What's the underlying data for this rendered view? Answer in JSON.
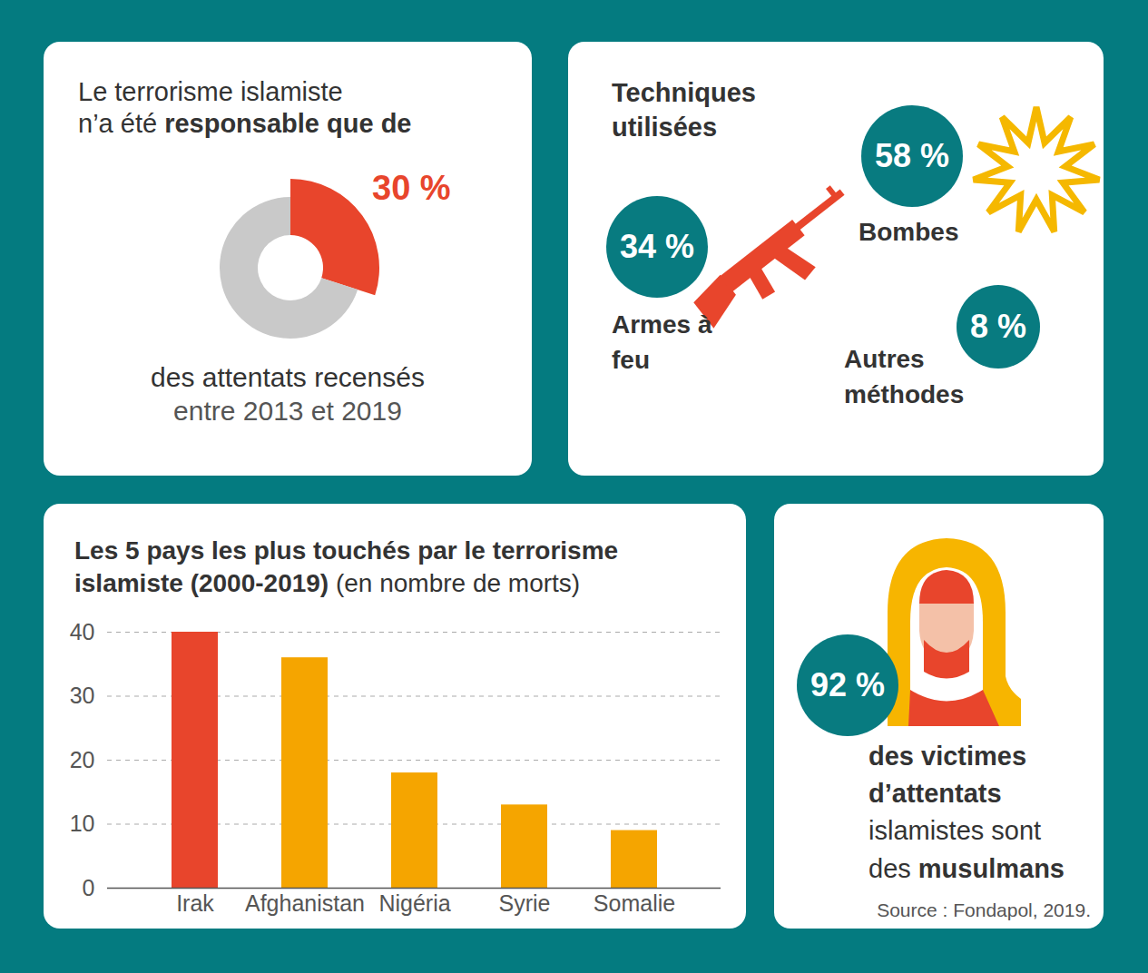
{
  "chart_data": [
    {
      "type": "pie",
      "title": [
        [
          {
            "text": "Le terrorisme islamiste"
          }
        ],
        [
          {
            "text": "n’a été "
          },
          {
            "text": "responsable que de",
            "bold": true
          }
        ]
      ],
      "values": [
        30,
        70
      ],
      "colors": [
        "#e8452c",
        "#c9c9c9"
      ],
      "value_labels": [
        "30 %",
        null
      ],
      "caption": [
        [
          {
            "text": "des attentats recensés"
          }
        ],
        [
          {
            "text": "entre 2013 et 2019"
          }
        ]
      ]
    },
    {
      "type": "bubble",
      "title": [
        [
          {
            "text": "Techniques",
            "bold": true
          }
        ],
        [
          {
            "text": "utilisées",
            "bold": true
          }
        ]
      ],
      "categories": [
        "Armes à feu",
        "Bombes",
        "Autres méthodes"
      ],
      "values": [
        34,
        58,
        8
      ],
      "value_labels": [
        "34 %",
        "58 %",
        "8 %"
      ]
    },
    {
      "type": "bar",
      "title": [
        [
          {
            "text": "Les 5 pays les plus touchés par le terrorisme",
            "bold": true
          }
        ],
        [
          {
            "text": "islamiste (2000-2019)",
            "bold": true
          },
          {
            "text": " (en nombre de morts)"
          }
        ]
      ],
      "categories": [
        "Irak",
        "Afghanistan",
        "Nigéria",
        "Syrie",
        "Somalie"
      ],
      "values": [
        40,
        36,
        18,
        13,
        9
      ],
      "colors": [
        "#e8452c",
        "#f5a500",
        "#f5a500",
        "#f5a500",
        "#f5a500"
      ],
      "ylim": [
        0,
        40
      ],
      "yticks": [
        0,
        10,
        20,
        30,
        40
      ],
      "grid": true
    },
    {
      "type": "stat",
      "values": [
        92
      ],
      "value_labels": [
        "92 %"
      ],
      "caption": [
        [
          {
            "text": "des victimes",
            "bold": true
          }
        ],
        [
          {
            "text": "d’attentats",
            "bold": true
          }
        ],
        [
          {
            "text": "islamistes sont"
          }
        ],
        [
          {
            "text": "des "
          },
          {
            "text": "musulmans",
            "bold": true
          }
        ]
      ],
      "source": "Source : Fondapol, 2019."
    }
  ]
}
